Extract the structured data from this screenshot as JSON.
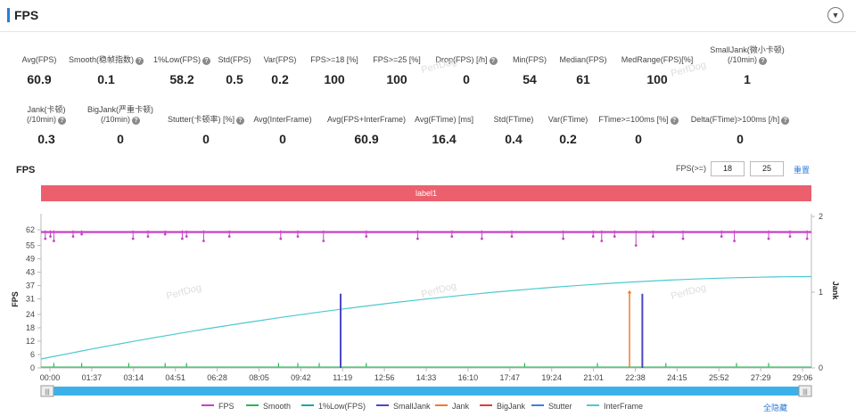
{
  "header": {
    "title": "FPS",
    "collapse_icon": "chevron-down-icon"
  },
  "stats_row1": [
    {
      "label": "Avg(FPS)",
      "value": "60.9",
      "help": false
    },
    {
      "label": "Smooth(稳帧指数)",
      "value": "0.1",
      "help": true
    },
    {
      "label": "1%Low(FPS)",
      "value": "58.2",
      "help": true
    },
    {
      "label": "Std(FPS)",
      "value": "0.5",
      "help": false
    },
    {
      "label": "Var(FPS)",
      "value": "0.2",
      "help": false
    },
    {
      "label": "FPS>=18 [%]",
      "value": "100",
      "help": false
    },
    {
      "label": "FPS>=25 [%]",
      "value": "100",
      "help": false
    },
    {
      "label": "Drop(FPS) [/h]",
      "value": "0",
      "help": true
    },
    {
      "label": "Min(FPS)",
      "value": "54",
      "help": false
    },
    {
      "label": "Median(FPS)",
      "value": "61",
      "help": false
    },
    {
      "label": "MedRange(FPS)[%]",
      "value": "100",
      "help": false
    },
    {
      "label": "SmallJank(微小卡顿)",
      "label2": "(/10min)",
      "value": "1",
      "help": true
    }
  ],
  "stats_row2": [
    {
      "label": "Jank(卡顿)",
      "label2": "(/10min)",
      "value": "0.3",
      "help": true
    },
    {
      "label": "BigJank(严重卡顿)",
      "label2": "(/10min)",
      "value": "0",
      "help": true
    },
    {
      "label": "Stutter(卡顿率) [%]",
      "value": "0",
      "help": true
    },
    {
      "label": "Avg(InterFrame)",
      "value": "0",
      "help": false
    },
    {
      "label": "Avg(FPS+InterFrame)",
      "value": "60.9",
      "help": false
    },
    {
      "label": "Avg(FTime) [ms]",
      "value": "16.4",
      "help": false
    },
    {
      "label": "Std(FTime)",
      "value": "0.4",
      "help": false
    },
    {
      "label": "Var(FTime)",
      "value": "0.2",
      "help": false
    },
    {
      "label": "FTime>=100ms [%]",
      "value": "0",
      "help": true
    },
    {
      "label": "Delta(FTime)>100ms [/h]",
      "value": "0",
      "help": true
    }
  ],
  "chart_section": {
    "title": "FPS",
    "fps_threshold_label": "FPS(>=)",
    "threshold_1": "18",
    "threshold_2": "25",
    "reset_label": "重置",
    "label_band": "label1",
    "hide_all_label": "全隐藏",
    "watermark": "PerfDog"
  },
  "chart_data": {
    "type": "line",
    "x_ticks": [
      "00:00",
      "01:37",
      "03:14",
      "04:51",
      "06:28",
      "08:05",
      "09:42",
      "11:19",
      "12:56",
      "14:33",
      "16:10",
      "17:47",
      "19:24",
      "21:01",
      "22:38",
      "24:15",
      "25:52",
      "27:29",
      "29:06"
    ],
    "y_ticks": [
      "0",
      "6",
      "12",
      "18",
      "24",
      "31",
      "37",
      "43",
      "49",
      "55",
      "62"
    ],
    "y2_ticks": [
      "0",
      "1",
      "2"
    ],
    "ylabel": "FPS",
    "y2label": "Jank",
    "ylim": [
      0,
      64
    ],
    "y2lim": [
      0,
      2
    ],
    "duration_s": 1800,
    "series": [
      {
        "name": "FPS",
        "color": "#c641c6",
        "baseline": 61,
        "dips": [
          [
            10,
            58
          ],
          [
            22,
            59
          ],
          [
            30,
            57
          ],
          [
            75,
            59
          ],
          [
            95,
            60
          ],
          [
            215,
            58
          ],
          [
            250,
            59
          ],
          [
            290,
            60
          ],
          [
            330,
            58
          ],
          [
            340,
            59
          ],
          [
            380,
            57
          ],
          [
            440,
            59
          ],
          [
            560,
            58
          ],
          [
            600,
            59
          ],
          [
            660,
            57
          ],
          [
            760,
            59
          ],
          [
            880,
            58
          ],
          [
            960,
            59
          ],
          [
            1030,
            58
          ],
          [
            1100,
            59
          ],
          [
            1220,
            58
          ],
          [
            1290,
            59
          ],
          [
            1310,
            57
          ],
          [
            1340,
            59
          ],
          [
            1390,
            55
          ],
          [
            1430,
            59
          ],
          [
            1500,
            58
          ],
          [
            1590,
            59
          ],
          [
            1620,
            57
          ],
          [
            1700,
            58
          ],
          [
            1750,
            59
          ],
          [
            1790,
            58
          ]
        ]
      },
      {
        "name": "Smooth",
        "color": "#2bb35a"
      },
      {
        "name": "1%Low(FPS)",
        "color": "#1aa9a0"
      },
      {
        "name": "SmallJank",
        "color": "#4b48c4",
        "events": [
          [
            700,
            1
          ],
          [
            1405,
            1
          ]
        ]
      },
      {
        "name": "Jank",
        "color": "#f07a2c",
        "events": [
          [
            1375,
            1
          ]
        ]
      },
      {
        "name": "BigJank",
        "color": "#e23b3b"
      },
      {
        "name": "Stutter",
        "color": "#3d7fe0"
      },
      {
        "name": "InterFrame",
        "color": "#4cc9d0",
        "start": 4,
        "end": 41
      }
    ]
  }
}
